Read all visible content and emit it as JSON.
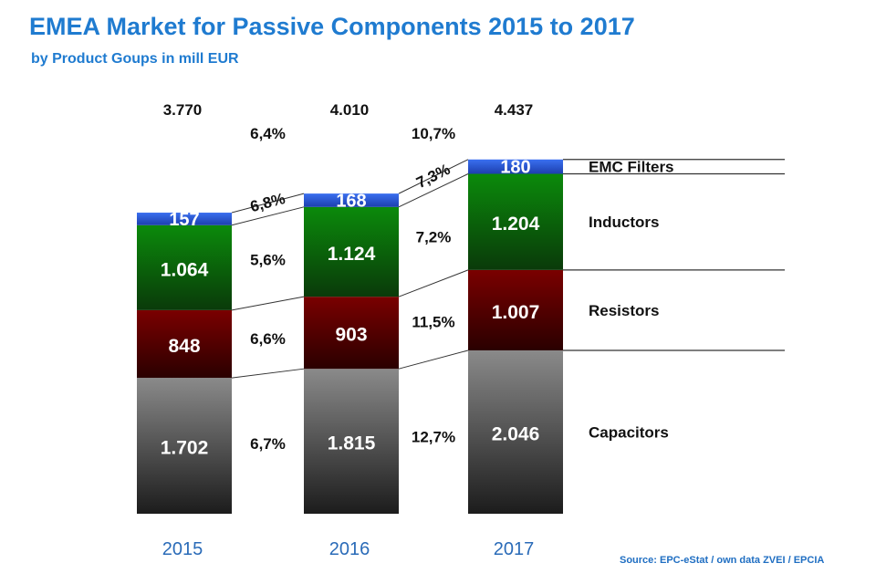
{
  "header": {
    "title": "EMEA Market for Passive Components 2015 to 2017",
    "subtitle": "by Product Goups in mill EUR"
  },
  "footer": {
    "source": "Source: EPC-eStat / own data ZVEI / EPCIA"
  },
  "chart_data": {
    "type": "bar",
    "stacked": true,
    "title": "EMEA Market for Passive Components 2015 to 2017",
    "subtitle": "by Product Goups in mill EUR",
    "xlabel": "",
    "ylabel": "",
    "categories": [
      "2015",
      "2016",
      "2017"
    ],
    "series": [
      {
        "name": "Capacitors",
        "values": [
          1702,
          1815,
          2046
        ],
        "labels": [
          "1.702",
          "1.815",
          "2.046"
        ],
        "color": "#5a5a5a"
      },
      {
        "name": "Resistors",
        "values": [
          848,
          903,
          1007
        ],
        "labels": [
          "848",
          "903",
          "1.007"
        ],
        "color": "#6e0000"
      },
      {
        "name": "Inductors",
        "values": [
          1064,
          1124,
          1204
        ],
        "labels": [
          "1.064",
          "1.124",
          "1.204"
        ],
        "color": "#0a7a0a"
      },
      {
        "name": "EMC Filters",
        "values": [
          157,
          168,
          180
        ],
        "labels": [
          "157",
          "168",
          "180"
        ],
        "color": "#2a5bd6"
      }
    ],
    "totals": {
      "values": [
        3770,
        4010,
        4437
      ],
      "labels": [
        "3.770",
        "4.010",
        "4.437"
      ]
    },
    "growth_rates": {
      "2015-2016": {
        "total": "6,4%",
        "EMC Filters": "6,8%",
        "Inductors": "5,6%",
        "Resistors": "6,6%",
        "Capacitors": "6,7%"
      },
      "2016-2017": {
        "total": "10,7%",
        "EMC Filters": "7,3%",
        "Inductors": "7,2%",
        "Resistors": "11,5%",
        "Capacitors": "12,7%"
      }
    },
    "legend_position": "right",
    "grid": false
  }
}
